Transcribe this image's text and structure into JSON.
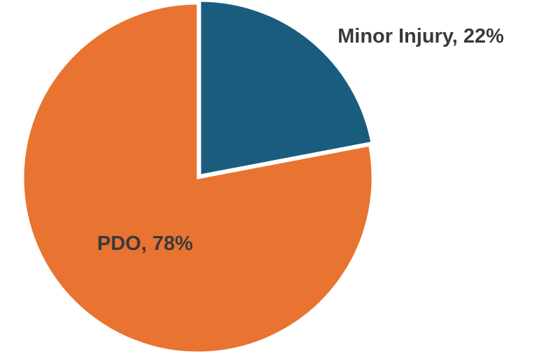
{
  "chart_data": {
    "type": "pie",
    "categories": [
      "Minor Injury",
      "PDO"
    ],
    "values": [
      22,
      78
    ],
    "colors": [
      "#1a5c7e",
      "#e97331"
    ],
    "labels": [
      {
        "category": "Minor Injury",
        "value": "22%",
        "text": "Minor Injury, 22%"
      },
      {
        "category": "PDO",
        "value": "78%",
        "text": "PDO, 78%"
      }
    ],
    "start_angle_deg": 0,
    "direction": "clockwise",
    "exploded_slice": "Minor Injury",
    "legend": "none"
  }
}
